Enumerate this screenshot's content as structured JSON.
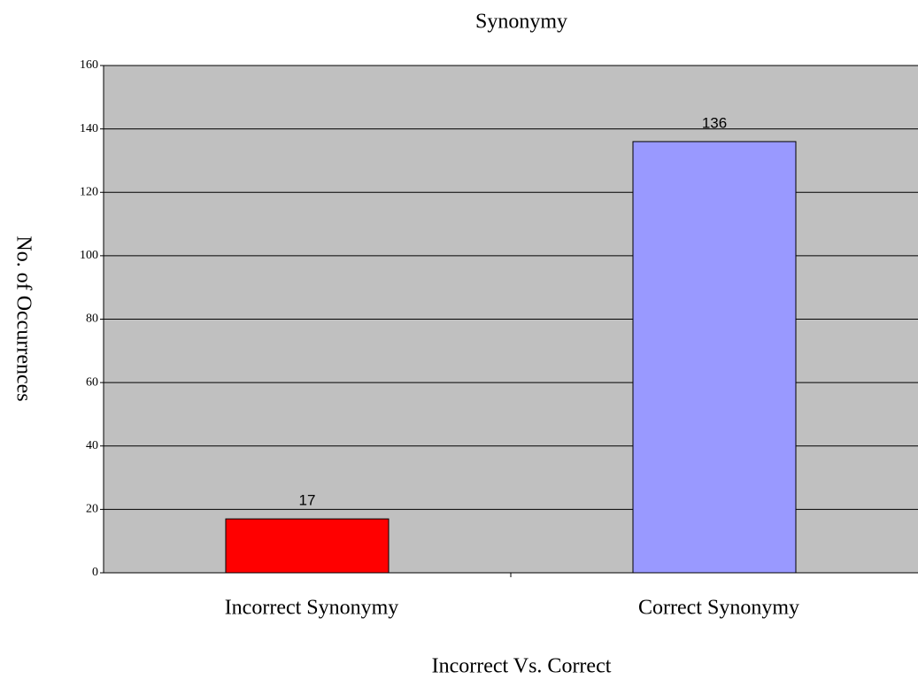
{
  "chart_data": {
    "type": "bar",
    "title": "Synonymy",
    "xlabel": "Incorrect Vs. Correct",
    "ylabel": "No. of Occurrences",
    "categories": [
      "Incorrect Synonymy",
      "Correct Synonymy"
    ],
    "values": [
      17,
      136
    ],
    "colors": [
      "#ff0000",
      "#9999ff"
    ],
    "ylim": [
      0,
      160
    ],
    "yticks": [
      0,
      20,
      40,
      60,
      80,
      100,
      120,
      140,
      160
    ],
    "grid": true
  }
}
